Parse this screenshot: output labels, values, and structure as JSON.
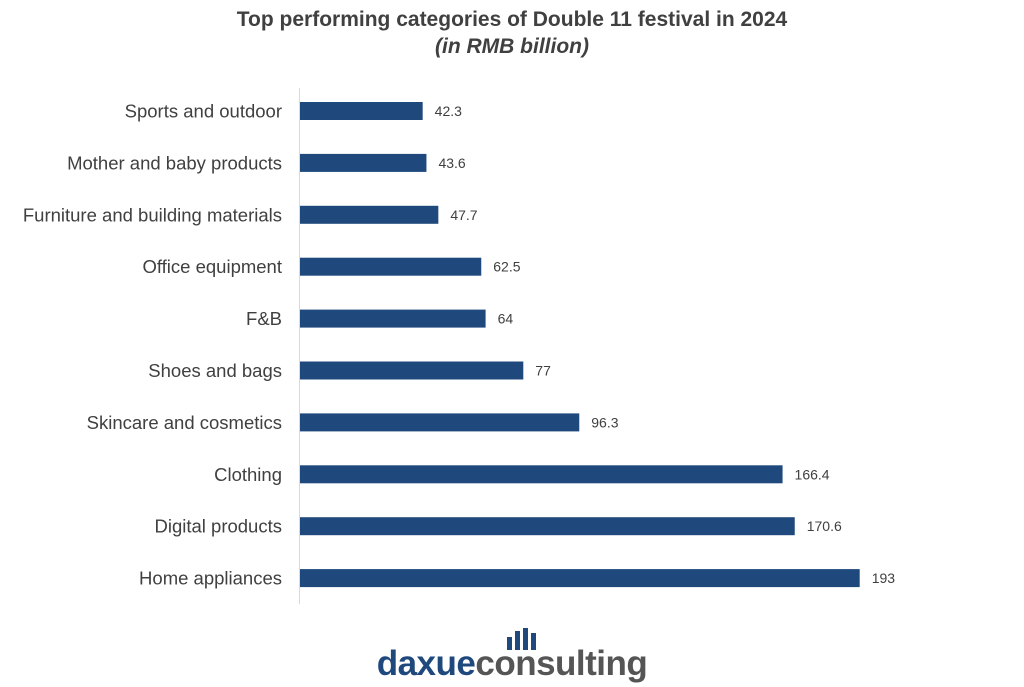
{
  "chart_data": {
    "type": "bar",
    "orientation": "horizontal",
    "title": "Top performing categories of Double 11 festival in 2024",
    "subtitle": "(in RMB billion)",
    "categories": [
      "Sports and outdoor",
      "Mother and baby products",
      "Furniture and building materials",
      "Office equipment",
      "F&B",
      "Shoes and bags",
      "Skincare and cosmetics",
      "Clothing",
      "Digital products",
      "Home appliances"
    ],
    "values": [
      42.3,
      43.6,
      47.7,
      62.5,
      64,
      77,
      96.3,
      166.4,
      170.6,
      193
    ],
    "value_labels": [
      "42.3",
      "43.6",
      "47.7",
      "62.5",
      "64",
      "77",
      "96.3",
      "166.4",
      "170.6",
      "193"
    ],
    "xlim": [
      0,
      200
    ],
    "grid": false,
    "legend": "none",
    "bar_color": "#1f497d"
  },
  "logo": {
    "brand_part1": "daxue",
    "brand_part2": "consulting",
    "color_primary": "#1f497d",
    "color_secondary": "#555555"
  }
}
